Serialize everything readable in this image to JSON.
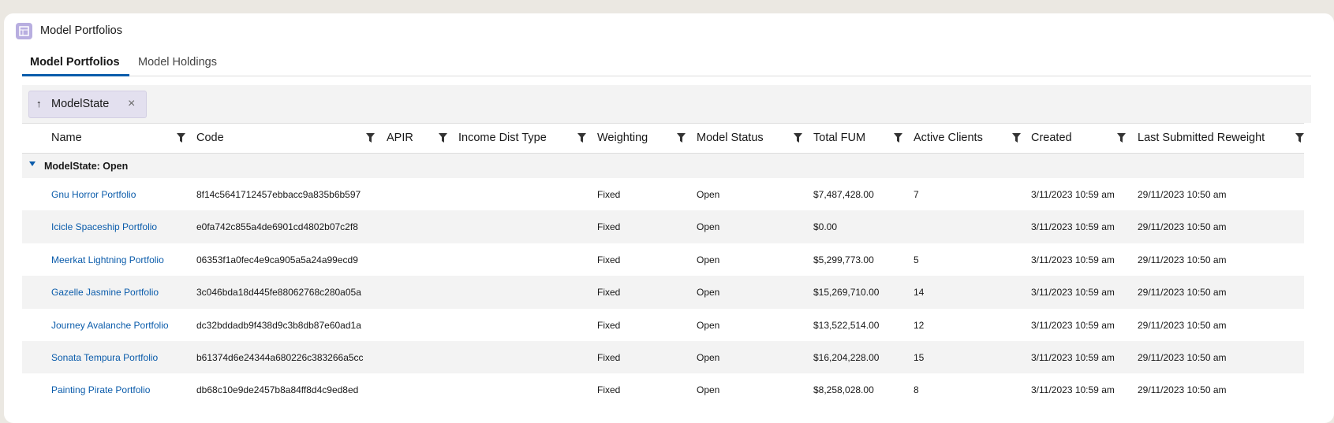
{
  "header": {
    "title": "Model Portfolios"
  },
  "tabs": [
    "Model Portfolios",
    "Model Holdings"
  ],
  "group_by": {
    "label": "ModelState"
  },
  "table": {
    "columns": [
      "Name",
      "Code",
      "APIR",
      "Income Dist Type",
      "Weighting",
      "Model Status",
      "Total FUM",
      "Active Clients",
      "Created",
      "Last Submitted Reweight"
    ],
    "group_label": "ModelState: Open",
    "rows": [
      [
        "Gnu Horror Portfolio",
        "8f14c5641712457ebbacc9a835b6b597",
        null,
        null,
        "Fixed",
        "Open",
        "$7,487,428.00",
        "7",
        "3/11/2023 10:59 am",
        "29/11/2023 10:50 am"
      ],
      [
        "Icicle Spaceship Portfolio",
        "e0fa742c855a4de6901cd4802b07c2f8",
        null,
        null,
        "Fixed",
        "Open",
        "$0.00",
        null,
        "3/11/2023 10:59 am",
        "29/11/2023 10:50 am"
      ],
      [
        "Meerkat Lightning Portfolio",
        "06353f1a0fec4e9ca905a5a24a99ecd9",
        null,
        null,
        "Fixed",
        "Open",
        "$5,299,773.00",
        "5",
        "3/11/2023 10:59 am",
        "29/11/2023 10:50 am"
      ],
      [
        "Gazelle Jasmine Portfolio",
        "3c046bda18d445fe88062768c280a05a",
        null,
        null,
        "Fixed",
        "Open",
        "$15,269,710.00",
        "14",
        "3/11/2023 10:59 am",
        "29/11/2023 10:50 am"
      ],
      [
        "Journey Avalanche Portfolio",
        "dc32bddadb9f438d9c3b8db87e60ad1a",
        null,
        null,
        "Fixed",
        "Open",
        "$13,522,514.00",
        "12",
        "3/11/2023 10:59 am",
        "29/11/2023 10:50 am"
      ],
      [
        "Sonata Tempura Portfolio",
        "b61374d6e24344a680226c383266a5cc",
        null,
        null,
        "Fixed",
        "Open",
        "$16,204,228.00",
        "15",
        "3/11/2023 10:59 am",
        "29/11/2023 10:50 am"
      ],
      [
        "Painting Pirate Portfolio",
        "db68c10e9de2457b8a84ff8d4c9ed8ed",
        null,
        null,
        "Fixed",
        "Open",
        "$8,258,028.00",
        "8",
        "3/11/2023 10:59 am",
        "29/11/2023 10:50 am"
      ]
    ]
  }
}
